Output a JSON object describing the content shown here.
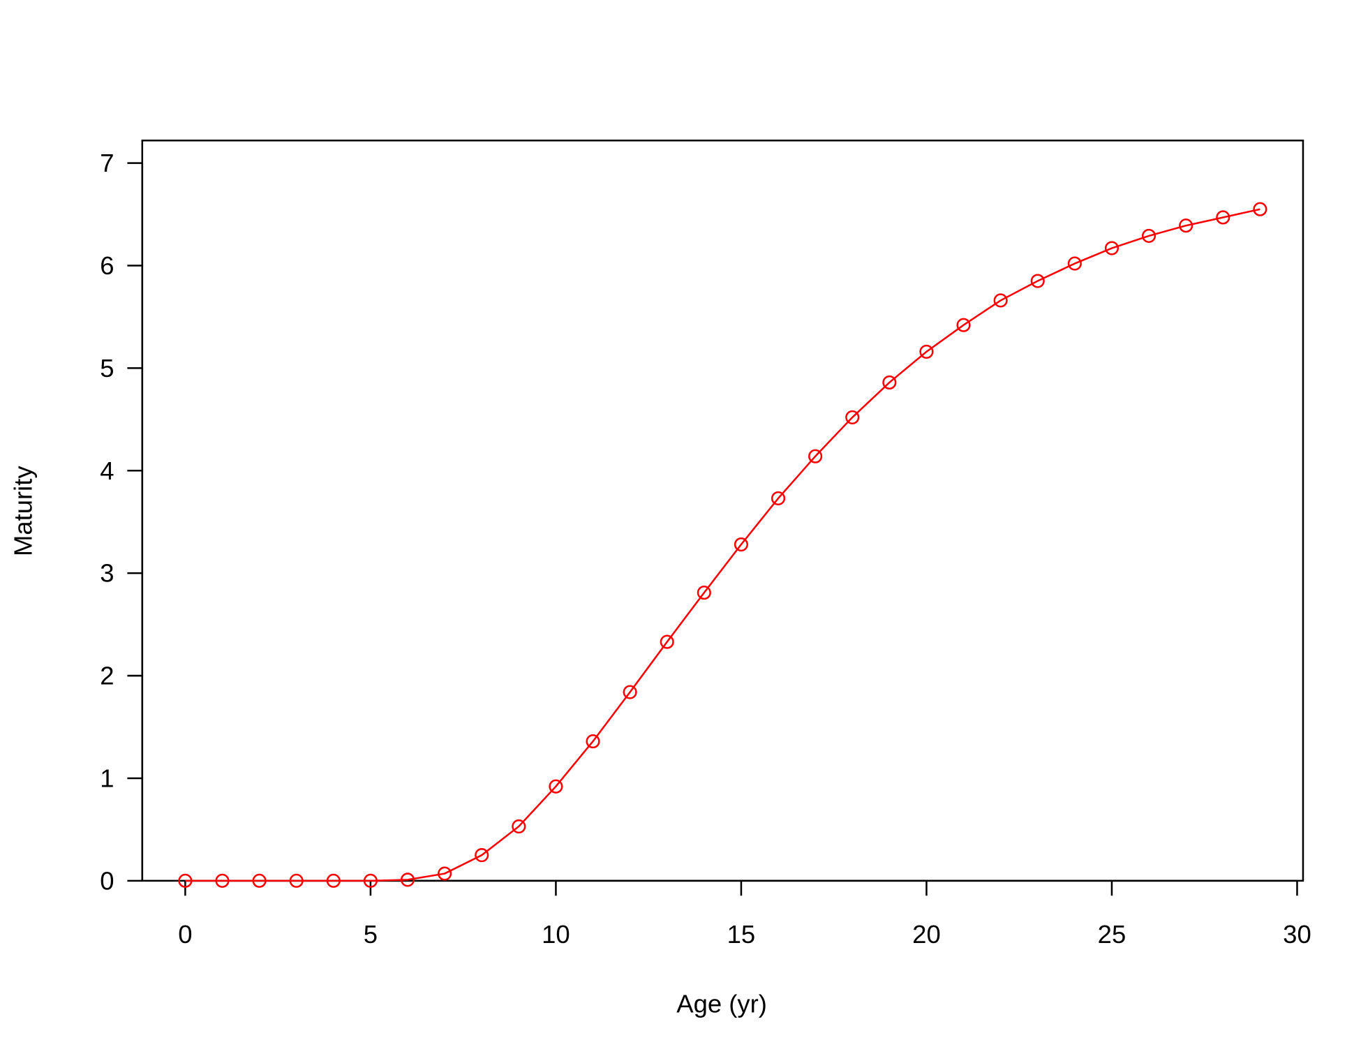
{
  "chart_data": {
    "type": "line",
    "xlabel": "Age (yr)",
    "ylabel": "Maturity",
    "x": [
      0,
      1,
      2,
      3,
      4,
      5,
      6,
      7,
      8,
      9,
      10,
      11,
      12,
      13,
      14,
      15,
      16,
      17,
      18,
      19,
      20,
      21,
      22,
      23,
      24,
      25,
      26,
      27,
      28,
      29
    ],
    "values": [
      0,
      0,
      0,
      0,
      0,
      0,
      0.01,
      0.07,
      0.25,
      0.53,
      0.92,
      1.36,
      1.84,
      2.33,
      2.81,
      3.28,
      3.73,
      4.14,
      4.52,
      4.86,
      5.16,
      5.42,
      5.66,
      5.85,
      6.02,
      6.17,
      6.29,
      6.39,
      6.47,
      6.55
    ],
    "color": "#ff0000",
    "xlim": [
      -1.16,
      30.16
    ],
    "ylim": [
      0,
      7.22
    ],
    "xticks": [
      0,
      5,
      10,
      15,
      20,
      25,
      30
    ],
    "yticks": [
      0,
      1,
      2,
      3,
      4,
      5,
      6,
      7
    ]
  }
}
